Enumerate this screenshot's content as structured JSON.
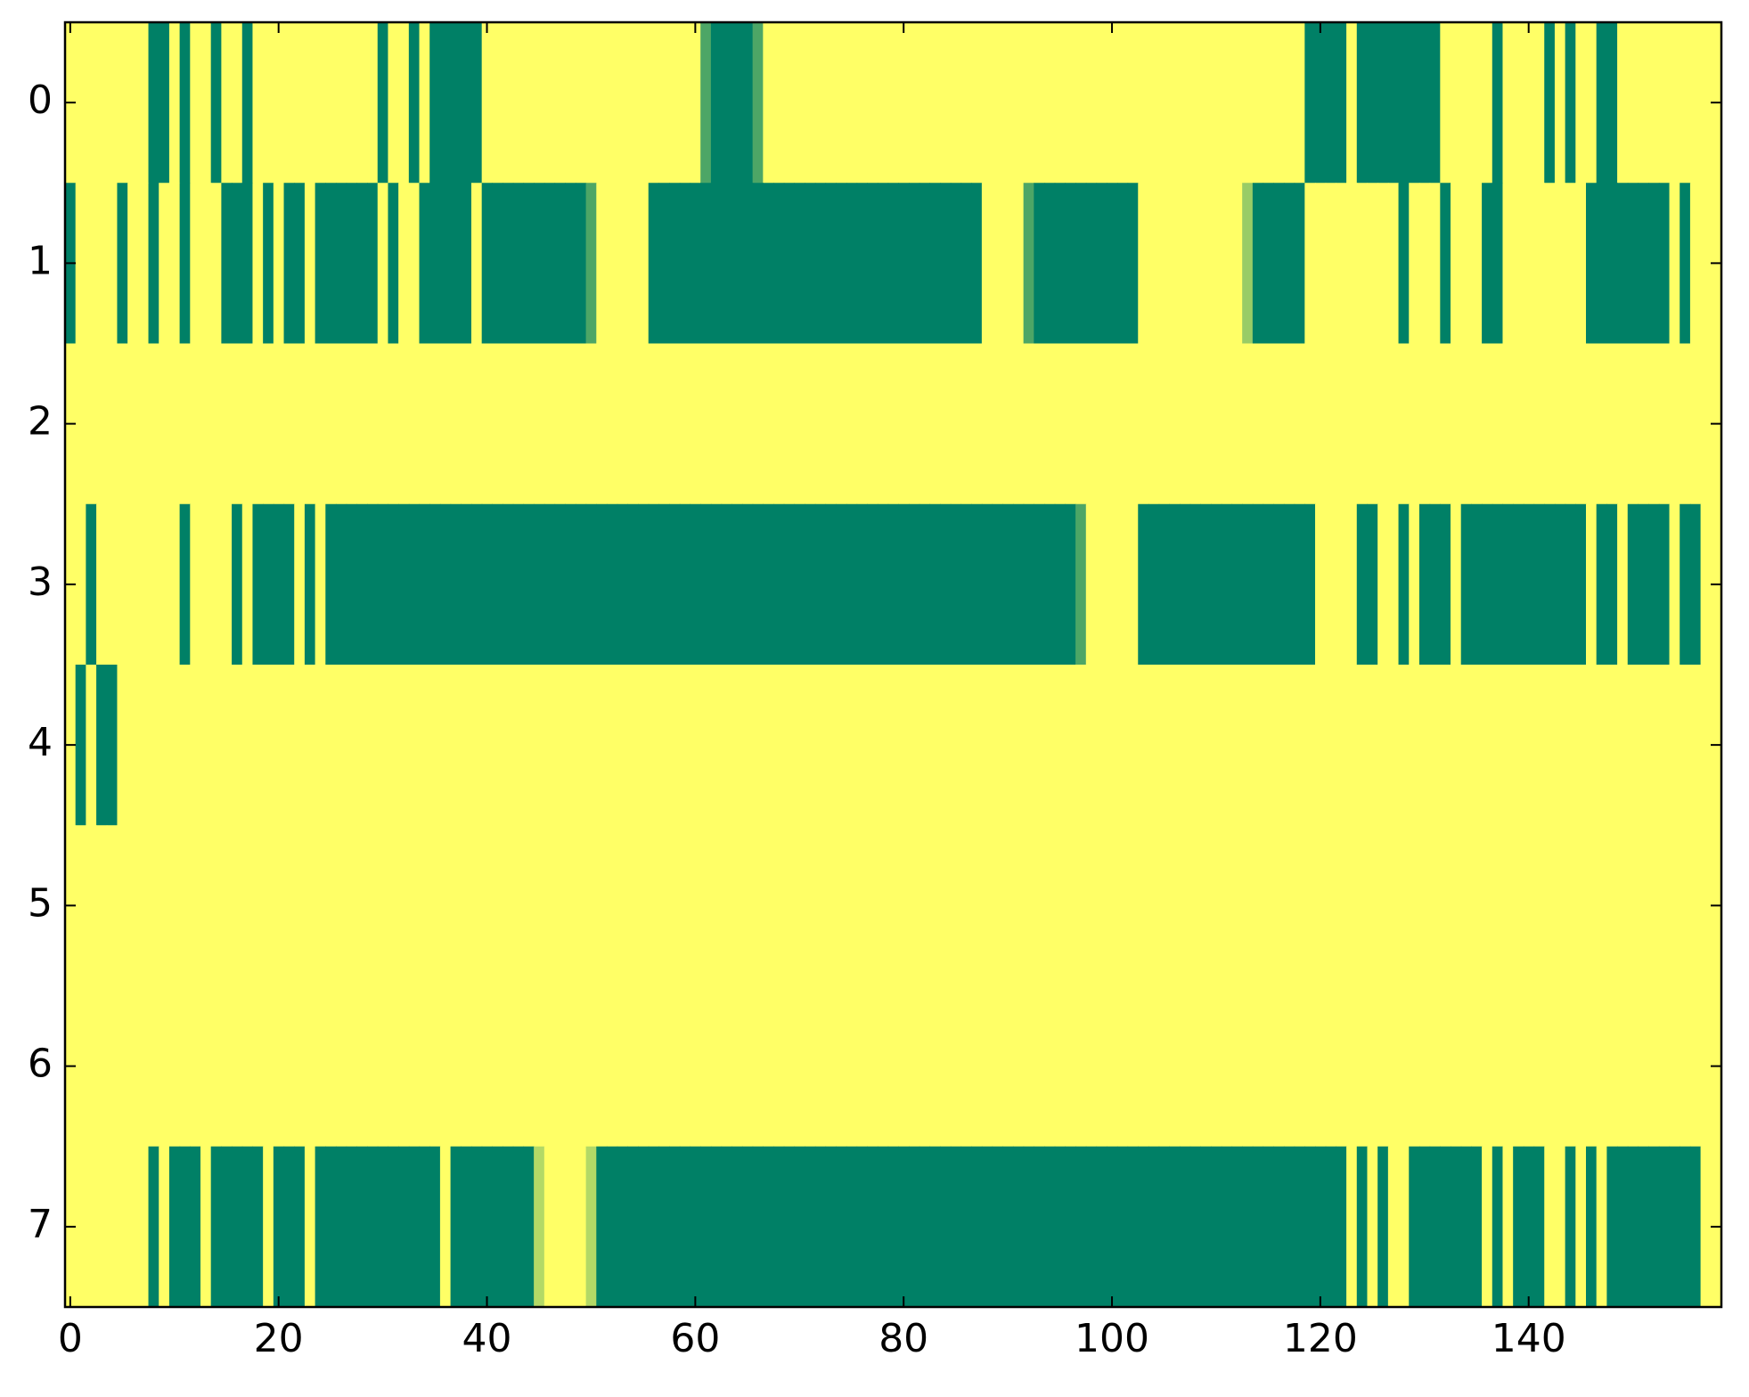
{
  "chart_data": {
    "type": "heatmap",
    "xlim": [
      -0.5,
      158.5
    ],
    "ylim": [
      7.5,
      -0.5
    ],
    "xticks": [
      0,
      20,
      40,
      60,
      80,
      100,
      120,
      140
    ],
    "yticks": [
      0,
      1,
      2,
      3,
      4,
      5,
      6,
      7
    ],
    "colormap": {
      "low": "#008066",
      "high": "#ffff66"
    },
    "zlim": [
      0,
      1
    ],
    "values": [
      [
        1,
        1,
        1,
        1,
        1,
        1,
        1,
        1,
        0,
        0,
        1,
        0,
        1,
        1,
        0,
        1,
        1,
        0,
        1,
        1,
        1,
        1,
        1,
        1,
        1,
        1,
        1,
        1,
        1,
        1,
        0,
        1,
        1,
        0,
        1,
        0,
        0,
        0,
        0,
        0,
        1,
        1,
        1,
        1,
        1,
        1,
        1,
        1,
        1,
        1,
        1,
        1,
        1,
        1,
        1,
        1,
        1,
        1,
        1,
        1,
        1,
        0.3,
        0,
        0,
        0,
        0,
        0.3,
        1,
        1,
        1,
        1,
        1,
        1,
        1,
        1,
        1,
        1,
        1,
        1,
        1,
        1,
        1,
        1,
        1,
        1,
        1,
        1,
        1,
        1,
        1,
        1,
        1,
        1,
        1,
        1,
        1,
        1,
        1,
        1,
        1,
        1,
        1,
        1,
        1,
        1,
        1,
        1,
        1,
        1,
        1,
        1,
        1,
        1,
        1,
        1,
        1,
        1,
        1,
        1,
        0,
        0,
        0,
        0,
        1,
        0,
        0,
        0,
        0,
        0,
        0,
        0,
        0,
        1,
        1,
        1,
        1,
        1,
        0,
        1,
        1,
        1,
        1,
        0,
        1,
        0,
        1,
        1,
        0,
        0,
        1,
        1,
        1,
        1,
        1,
        1,
        1,
        1,
        1,
        1
      ],
      [
        0,
        1,
        1,
        1,
        1,
        0,
        1,
        1,
        0,
        1,
        1,
        0,
        1,
        1,
        1,
        0,
        0,
        0,
        1,
        0,
        1,
        0,
        0,
        1,
        0,
        0,
        0,
        0,
        0,
        0,
        1,
        0,
        1,
        1,
        0,
        0,
        0,
        0,
        0,
        1,
        0,
        0,
        0,
        0,
        0,
        0,
        0,
        0,
        0,
        0,
        0.3,
        1,
        1,
        1,
        1,
        1,
        0,
        0,
        0,
        0,
        0,
        0,
        0,
        0,
        0,
        0,
        0,
        0,
        0,
        0,
        0,
        0,
        0,
        0,
        0,
        0,
        0,
        0,
        0,
        0,
        0,
        0,
        0,
        0,
        0,
        0,
        0,
        0,
        1,
        1,
        1,
        1,
        0.3,
        0,
        0,
        0,
        0,
        0,
        0,
        0,
        0,
        0,
        0,
        1,
        1,
        1,
        1,
        1,
        1,
        1,
        1,
        1,
        1,
        0.6,
        0,
        0,
        0,
        0,
        0,
        1,
        1,
        1,
        1,
        1,
        1,
        1,
        1,
        1,
        0,
        1,
        1,
        1,
        0,
        1,
        1,
        1,
        0,
        0,
        1,
        1,
        1,
        1,
        1,
        1,
        1,
        1,
        0,
        0,
        0,
        0,
        0,
        0,
        0,
        0,
        1,
        0,
        1,
        1,
        1
      ],
      [
        1,
        1,
        1,
        1,
        1,
        1,
        1,
        1,
        1,
        1,
        1,
        1,
        1,
        1,
        1,
        1,
        1,
        1,
        1,
        1,
        1,
        1,
        1,
        1,
        1,
        1,
        1,
        1,
        1,
        1,
        1,
        1,
        1,
        1,
        1,
        1,
        1,
        1,
        1,
        1,
        1,
        1,
        1,
        1,
        1,
        1,
        1,
        1,
        1,
        1,
        1,
        1,
        1,
        1,
        1,
        1,
        1,
        1,
        1,
        1,
        1,
        1,
        1,
        1,
        1,
        1,
        1,
        1,
        1,
        1,
        1,
        1,
        1,
        1,
        1,
        1,
        1,
        1,
        1,
        1,
        1,
        1,
        1,
        1,
        1,
        1,
        1,
        1,
        1,
        1,
        1,
        1,
        1,
        1,
        1,
        1,
        1,
        1,
        1,
        1,
        1,
        1,
        1,
        1,
        1,
        1,
        1,
        1,
        1,
        1,
        1,
        1,
        1,
        1,
        1,
        1,
        1,
        1,
        1,
        1,
        1,
        1,
        1,
        1,
        1,
        1,
        1,
        1,
        1,
        1,
        1,
        1,
        1,
        1,
        1,
        1,
        1,
        1,
        1,
        1,
        1,
        1,
        1,
        1,
        1,
        1,
        1,
        1,
        1,
        1,
        1,
        1,
        1,
        1,
        1,
        1,
        1,
        1,
        1
      ],
      [
        1,
        1,
        0,
        1,
        1,
        1,
        1,
        1,
        1,
        1,
        1,
        0,
        1,
        1,
        1,
        1,
        0,
        1,
        0,
        0,
        0,
        0,
        1,
        0,
        1,
        0,
        0,
        0,
        0,
        0,
        0,
        0,
        0,
        0,
        0,
        0,
        0,
        0,
        0,
        0,
        0,
        0,
        0,
        0,
        0,
        0,
        0,
        0,
        0,
        0,
        0,
        0,
        0,
        0,
        0,
        0,
        0,
        0,
        0,
        0,
        0,
        0,
        0,
        0,
        0,
        0,
        0,
        0,
        0,
        0,
        0,
        0,
        0,
        0,
        0,
        0,
        0,
        0,
        0,
        0,
        0,
        0,
        0,
        0,
        0,
        0,
        0,
        0,
        0,
        0,
        0,
        0,
        0,
        0,
        0,
        0,
        0,
        0.3,
        1,
        1,
        1,
        1,
        1,
        0,
        0,
        0,
        0,
        0,
        0,
        0,
        0,
        0,
        0,
        0,
        0,
        0,
        0,
        0,
        0,
        0,
        1,
        1,
        1,
        1,
        0,
        0,
        1,
        1,
        0,
        1,
        0,
        0,
        0,
        1,
        0,
        0,
        0,
        0,
        0,
        0,
        0,
        0,
        0,
        0,
        0,
        0,
        1,
        0,
        0,
        1,
        0,
        0,
        0,
        0,
        1,
        0,
        0,
        1,
        1
      ],
      [
        1,
        0,
        1,
        0,
        0,
        1,
        1,
        1,
        1,
        1,
        1,
        1,
        1,
        1,
        1,
        1,
        1,
        1,
        1,
        1,
        1,
        1,
        1,
        1,
        1,
        1,
        1,
        1,
        1,
        1,
        1,
        1,
        1,
        1,
        1,
        1,
        1,
        1,
        1,
        1,
        1,
        1,
        1,
        1,
        1,
        1,
        1,
        1,
        1,
        1,
        1,
        1,
        1,
        1,
        1,
        1,
        1,
        1,
        1,
        1,
        1,
        1,
        1,
        1,
        1,
        1,
        1,
        1,
        1,
        1,
        1,
        1,
        1,
        1,
        1,
        1,
        1,
        1,
        1,
        1,
        1,
        1,
        1,
        1,
        1,
        1,
        1,
        1,
        1,
        1,
        1,
        1,
        1,
        1,
        1,
        1,
        1,
        1,
        1,
        1,
        1,
        1,
        1,
        1,
        1,
        1,
        1,
        1,
        1,
        1,
        1,
        1,
        1,
        1,
        1,
        1,
        1,
        1,
        1,
        1,
        1,
        1,
        1,
        1,
        1,
        1,
        1,
        1,
        1,
        1,
        1,
        1,
        1,
        1,
        1,
        1,
        1,
        1,
        1,
        1,
        1,
        1,
        1,
        1,
        1,
        1,
        1,
        1,
        1,
        1,
        1,
        1,
        1,
        1,
        1,
        1,
        1,
        1,
        1
      ],
      [
        1,
        1,
        1,
        1,
        1,
        1,
        1,
        1,
        1,
        1,
        1,
        1,
        1,
        1,
        1,
        1,
        1,
        1,
        1,
        1,
        1,
        1,
        1,
        1,
        1,
        1,
        1,
        1,
        1,
        1,
        1,
        1,
        1,
        1,
        1,
        1,
        1,
        1,
        1,
        1,
        1,
        1,
        1,
        1,
        1,
        1,
        1,
        1,
        1,
        1,
        1,
        1,
        1,
        1,
        1,
        1,
        1,
        1,
        1,
        1,
        1,
        1,
        1,
        1,
        1,
        1,
        1,
        1,
        1,
        1,
        1,
        1,
        1,
        1,
        1,
        1,
        1,
        1,
        1,
        1,
        1,
        1,
        1,
        1,
        1,
        1,
        1,
        1,
        1,
        1,
        1,
        1,
        1,
        1,
        1,
        1,
        1,
        1,
        1,
        1,
        1,
        1,
        1,
        1,
        1,
        1,
        1,
        1,
        1,
        1,
        1,
        1,
        1,
        1,
        1,
        1,
        1,
        1,
        1,
        1,
        1,
        1,
        1,
        1,
        1,
        1,
        1,
        1,
        1,
        1,
        1,
        1,
        1,
        1,
        1,
        1,
        1,
        1,
        1,
        1,
        1,
        1,
        1,
        1,
        1,
        1,
        1,
        1,
        1,
        1,
        1,
        1,
        1,
        1,
        1,
        1,
        1,
        1,
        1
      ],
      [
        1,
        1,
        1,
        1,
        1,
        1,
        1,
        1,
        1,
        1,
        1,
        1,
        1,
        1,
        1,
        1,
        1,
        1,
        1,
        1,
        1,
        1,
        1,
        1,
        1,
        1,
        1,
        1,
        1,
        1,
        1,
        1,
        1,
        1,
        1,
        1,
        1,
        1,
        1,
        1,
        1,
        1,
        1,
        1,
        1,
        1,
        1,
        1,
        1,
        1,
        1,
        1,
        1,
        1,
        1,
        1,
        1,
        1,
        1,
        1,
        1,
        1,
        1,
        1,
        1,
        1,
        1,
        1,
        1,
        1,
        1,
        1,
        1,
        1,
        1,
        1,
        1,
        1,
        1,
        1,
        1,
        1,
        1,
        1,
        1,
        1,
        1,
        1,
        1,
        1,
        1,
        1,
        1,
        1,
        1,
        1,
        1,
        1,
        1,
        1,
        1,
        1,
        1,
        1,
        1,
        1,
        1,
        1,
        1,
        1,
        1,
        1,
        1,
        1,
        1,
        1,
        1,
        1,
        1,
        1,
        1,
        1,
        1,
        1,
        1,
        1,
        1,
        1,
        1,
        1,
        1,
        1,
        1,
        1,
        1,
        1,
        1,
        1,
        1,
        1,
        1,
        1,
        1,
        1,
        1,
        1,
        1,
        1,
        1,
        1,
        1,
        1,
        1,
        1,
        1,
        1,
        1,
        1,
        1
      ],
      [
        1,
        1,
        1,
        1,
        1,
        1,
        1,
        1,
        0,
        1,
        0,
        0,
        0,
        1,
        0,
        0,
        0,
        0,
        0,
        1,
        0,
        0,
        0,
        1,
        0,
        0,
        0,
        0,
        0,
        0,
        0,
        0,
        0,
        0,
        0,
        0,
        1,
        0,
        0,
        0,
        0,
        0,
        0,
        0,
        0,
        0.7,
        1,
        1,
        1,
        1,
        0.7,
        0,
        0,
        0,
        0,
        0,
        0,
        0,
        0,
        0,
        0,
        0,
        0,
        0,
        0,
        0,
        0,
        0,
        0,
        0,
        0,
        0,
        0,
        0,
        0,
        0,
        0,
        0,
        0,
        0,
        0,
        0,
        0,
        0,
        0,
        0,
        0,
        0,
        0,
        0,
        0,
        0,
        0,
        0,
        0,
        0,
        0,
        0,
        0,
        0,
        0,
        0,
        0,
        0,
        0,
        0,
        0,
        0,
        0,
        0,
        0,
        0,
        0,
        0,
        0,
        0,
        0,
        0,
        0,
        0,
        0,
        0,
        0,
        1,
        0,
        1,
        0,
        1,
        1,
        0,
        0,
        0,
        0,
        0,
        0,
        0,
        1,
        0,
        1,
        0,
        0,
        0,
        1,
        1,
        0,
        1,
        0,
        1,
        0,
        0,
        0,
        0,
        0,
        0,
        0,
        0,
        0,
        1,
        1
      ]
    ]
  }
}
